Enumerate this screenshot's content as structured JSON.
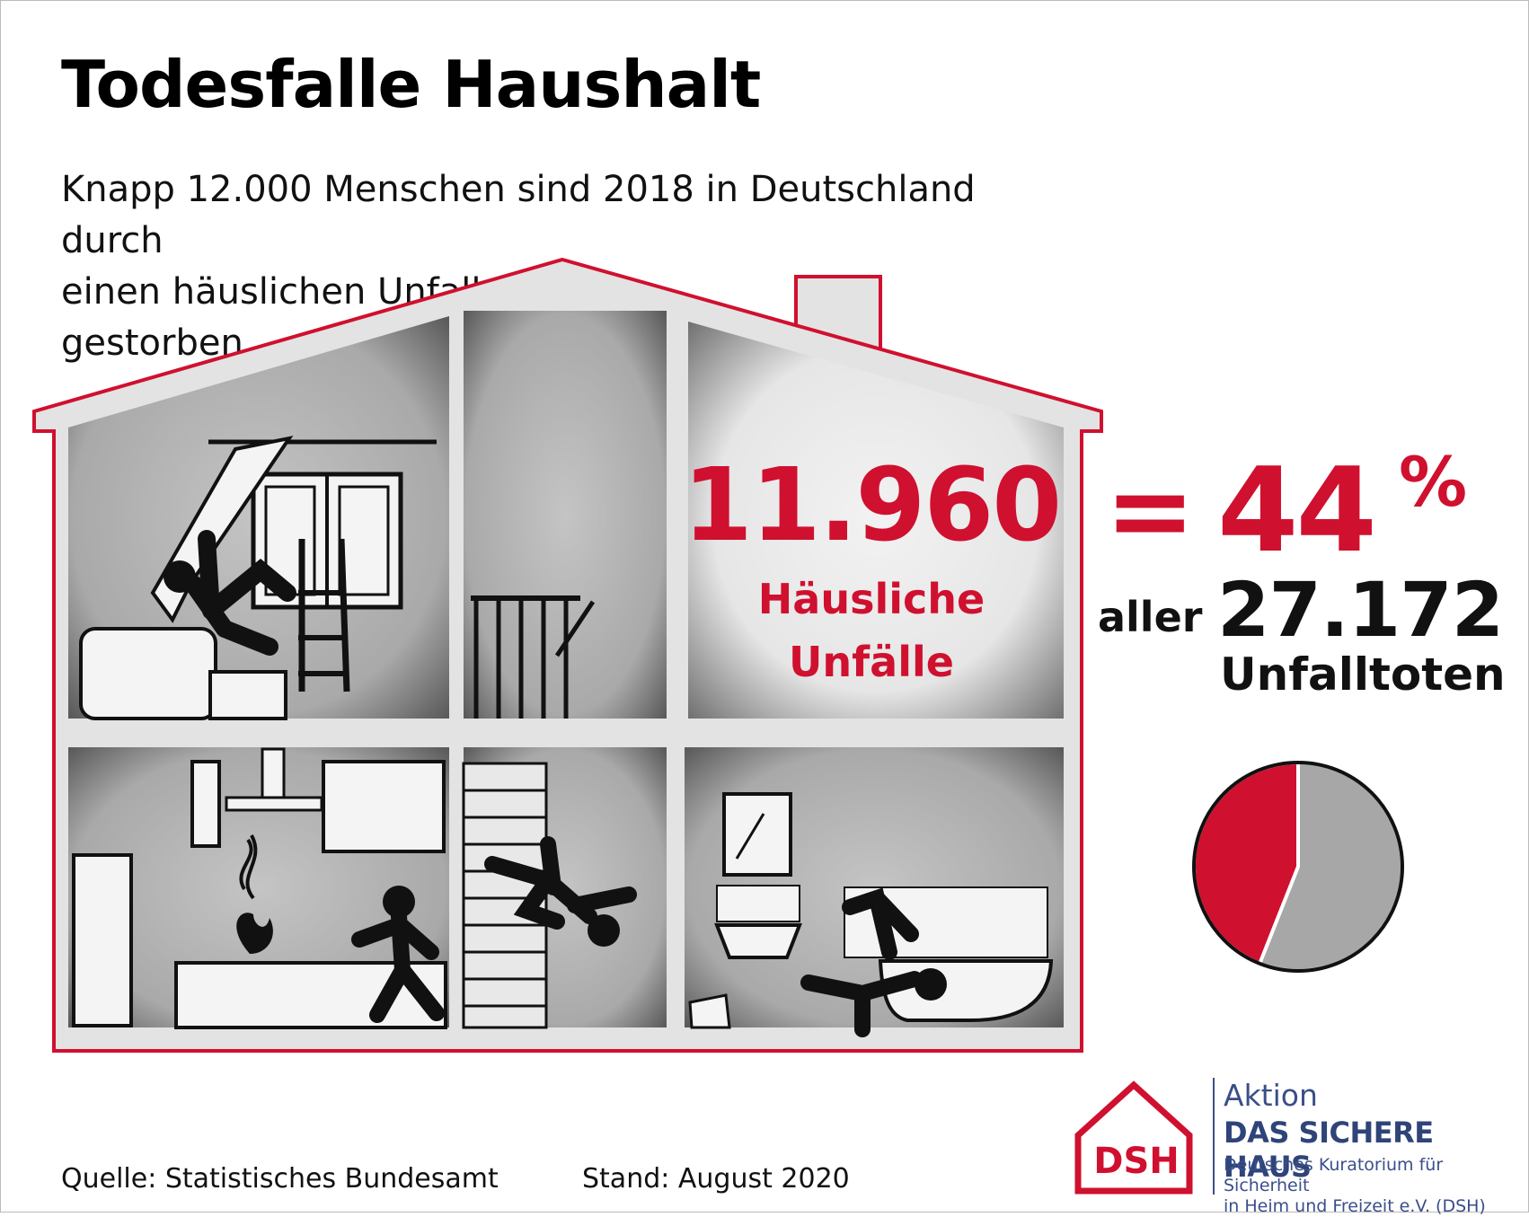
{
  "title": "Todesfalle Haushalt",
  "subtitle_lines": [
    "Knapp 12.000 Menschen sind 2018 in Deutschland durch",
    "einen häuslichen Unfall",
    "gestorben."
  ],
  "stats": {
    "household_count": "11.960",
    "household_label_1": "Häusliche",
    "household_label_2": "Unfälle",
    "equals": "=",
    "percent_value": "44",
    "percent_sign": "%",
    "aller": "aller",
    "total_count": "27.172",
    "total_label": "Unfalltoten"
  },
  "chart_data": {
    "type": "pie",
    "title": "",
    "values": [
      44,
      56
    ],
    "units": "%",
    "colors": [
      "#d0102f",
      "#a7a7a7"
    ],
    "start_angle_deg": 0,
    "direction": "counterclockwise"
  },
  "footer": {
    "source": "Quelle: Statistisches Bundesamt",
    "stand": "Stand: August 2020"
  },
  "logo": {
    "mark": "DSH",
    "line1": "Aktion",
    "line2": "DAS SICHERE HAUS",
    "line3a": "Deutsches Kuratorium für Sicherheit",
    "line3b": "in Heim und Freizeit e.V. (DSH)"
  },
  "icons": [
    "falling-from-ladder-icon",
    "kitchen-fire-icon",
    "falling-down-stairs-icon",
    "bathroom-slip-icon",
    "house-logo-icon"
  ]
}
